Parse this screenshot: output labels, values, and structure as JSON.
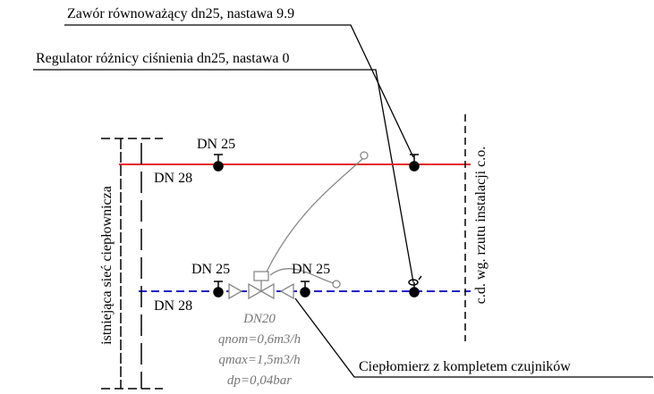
{
  "labels": {
    "balancing_valve": "Zawór równoważący dn25, nastawa 9.9",
    "pressure_regulator": "Regulator różnicy ciśnienia dn25, nastawa 0",
    "supply_dn25": "DN 25",
    "supply_dn28": "DN 28",
    "return_dn25_left": "DN 25",
    "return_dn25_right": "DN 25",
    "return_dn28": "DN 28",
    "network": "istniejąca sieć ciepłownicza",
    "installation": "c.d. wg. rzutu instalacji c.o.",
    "meter_dn": "DN20",
    "meter_qnom": "qnom=0,6m3/h",
    "meter_qmax": "qmax=1,5m3/h",
    "meter_dp": "dp=0,04bar",
    "heat_meter": "Ciepłomierz z kompletem czujników"
  }
}
